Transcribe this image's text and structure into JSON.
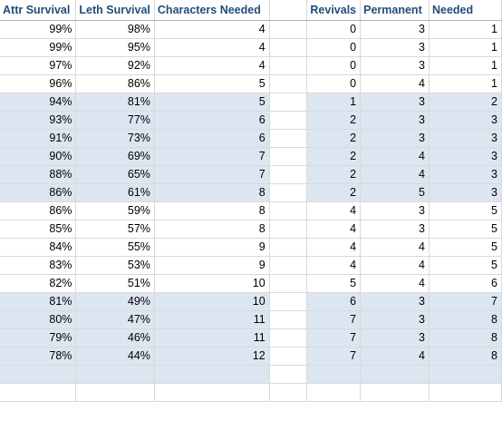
{
  "headers": [
    "Attr Survival",
    "Leth Survival",
    "Characters Needed",
    "Revivals",
    "Permanent",
    "Needed"
  ],
  "rows": [
    {
      "attr": "99%",
      "leth": "98%",
      "chars": "4",
      "rev": "0",
      "perm": "3",
      "need": "1",
      "shaded": false
    },
    {
      "attr": "99%",
      "leth": "95%",
      "chars": "4",
      "rev": "0",
      "perm": "3",
      "need": "1",
      "shaded": false
    },
    {
      "attr": "97%",
      "leth": "92%",
      "chars": "4",
      "rev": "0",
      "perm": "3",
      "need": "1",
      "shaded": false
    },
    {
      "attr": "96%",
      "leth": "86%",
      "chars": "5",
      "rev": "0",
      "perm": "4",
      "need": "1",
      "shaded": false
    },
    {
      "attr": "94%",
      "leth": "81%",
      "chars": "5",
      "rev": "1",
      "perm": "3",
      "need": "2",
      "shaded": true
    },
    {
      "attr": "93%",
      "leth": "77%",
      "chars": "6",
      "rev": "2",
      "perm": "3",
      "need": "3",
      "shaded": true
    },
    {
      "attr": "91%",
      "leth": "73%",
      "chars": "6",
      "rev": "2",
      "perm": "3",
      "need": "3",
      "shaded": true
    },
    {
      "attr": "90%",
      "leth": "69%",
      "chars": "7",
      "rev": "2",
      "perm": "4",
      "need": "3",
      "shaded": true
    },
    {
      "attr": "88%",
      "leth": "65%",
      "chars": "7",
      "rev": "2",
      "perm": "4",
      "need": "3",
      "shaded": true
    },
    {
      "attr": "86%",
      "leth": "61%",
      "chars": "8",
      "rev": "2",
      "perm": "5",
      "need": "3",
      "shaded": true
    },
    {
      "attr": "86%",
      "leth": "59%",
      "chars": "8",
      "rev": "4",
      "perm": "3",
      "need": "5",
      "shaded": false
    },
    {
      "attr": "85%",
      "leth": "57%",
      "chars": "8",
      "rev": "4",
      "perm": "3",
      "need": "5",
      "shaded": false
    },
    {
      "attr": "84%",
      "leth": "55%",
      "chars": "9",
      "rev": "4",
      "perm": "4",
      "need": "5",
      "shaded": false
    },
    {
      "attr": "83%",
      "leth": "53%",
      "chars": "9",
      "rev": "4",
      "perm": "4",
      "need": "5",
      "shaded": false
    },
    {
      "attr": "82%",
      "leth": "51%",
      "chars": "10",
      "rev": "5",
      "perm": "4",
      "need": "6",
      "shaded": false
    },
    {
      "attr": "81%",
      "leth": "49%",
      "chars": "10",
      "rev": "6",
      "perm": "3",
      "need": "7",
      "shaded": true
    },
    {
      "attr": "80%",
      "leth": "47%",
      "chars": "11",
      "rev": "7",
      "perm": "3",
      "need": "8",
      "shaded": true
    },
    {
      "attr": "79%",
      "leth": "46%",
      "chars": "11",
      "rev": "7",
      "perm": "3",
      "need": "8",
      "shaded": true
    },
    {
      "attr": "78%",
      "leth": "44%",
      "chars": "12",
      "rev": "7",
      "perm": "4",
      "need": "8",
      "shaded": true
    },
    {
      "attr": "",
      "leth": "",
      "chars": "",
      "rev": "",
      "perm": "",
      "need": "",
      "shaded": true
    }
  ],
  "colors": {
    "shade": "#dce6f1",
    "header_text": "#1f4e79",
    "gridline": "#d9d9d9"
  }
}
